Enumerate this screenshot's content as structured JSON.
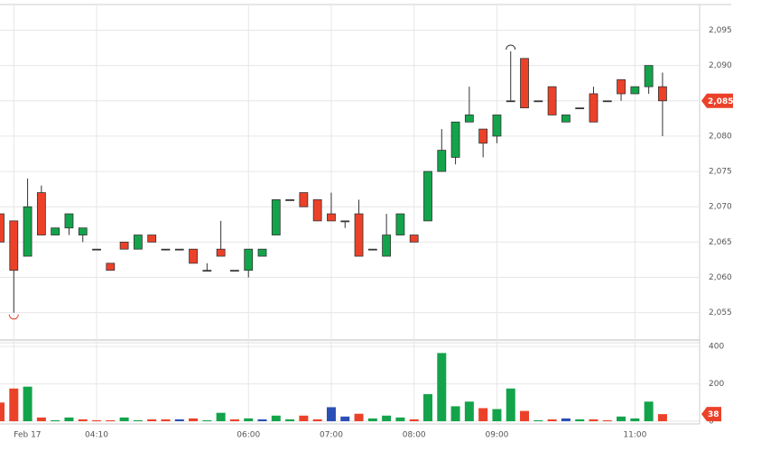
{
  "chart_data": {
    "type": "candlestick",
    "categories": [
      null,
      "Feb 17",
      null,
      null,
      null,
      null,
      null,
      "04:10",
      null,
      null,
      null,
      null,
      null,
      null,
      null,
      null,
      null,
      null,
      "06:00",
      null,
      null,
      null,
      null,
      null,
      "07:00",
      null,
      null,
      null,
      null,
      null,
      "08:00",
      null,
      null,
      null,
      null,
      null,
      "09:00",
      null,
      null,
      null,
      null,
      null,
      null,
      null,
      null,
      null,
      "11:00",
      null,
      null
    ],
    "candles": {
      "open": [
        2069,
        2068,
        2063,
        2072,
        2066,
        2067,
        2066,
        2064,
        2062,
        2065,
        2064,
        2066,
        2064,
        2064,
        2064,
        2061,
        2064,
        2061,
        2061,
        2063,
        2066,
        2071,
        2072,
        2071,
        2069,
        2068,
        2069,
        2064,
        2063,
        2066,
        2066,
        2068,
        2075,
        2077,
        2082,
        2081,
        2080,
        2085,
        2091,
        2085,
        2087,
        2082,
        2084,
        2086,
        2085,
        2088,
        2086,
        2087,
        2087
      ],
      "high": [
        2069,
        2068,
        2074,
        2073,
        2067,
        2069,
        2067,
        2064,
        2062,
        2065,
        2066,
        2066,
        2064,
        2064,
        2064,
        2062,
        2068,
        2061,
        2064,
        2064,
        2071,
        2071,
        2072,
        2071,
        2072,
        2068,
        2071,
        2064,
        2069,
        2069,
        2066,
        2075,
        2081,
        2082,
        2087,
        2081,
        2083,
        2092,
        2091,
        2085,
        2087,
        2083,
        2084,
        2087,
        2085,
        2088,
        2087,
        2090,
        2089
      ],
      "low": [
        2065,
        2055,
        2063,
        2066,
        2066,
        2066,
        2065,
        2064,
        2061,
        2064,
        2064,
        2065,
        2064,
        2064,
        2062,
        2061,
        2063,
        2061,
        2060,
        2063,
        2066,
        2071,
        2070,
        2068,
        2068,
        2067,
        2063,
        2064,
        2063,
        2066,
        2065,
        2068,
        2075,
        2076,
        2082,
        2077,
        2079,
        2085,
        2084,
        2085,
        2083,
        2082,
        2084,
        2082,
        2085,
        2085,
        2086,
        2086,
        2080
      ],
      "close": [
        2065,
        2061,
        2070,
        2066,
        2067,
        2069,
        2067,
        2064,
        2061,
        2064,
        2066,
        2065,
        2064,
        2064,
        2062,
        2061,
        2063,
        2061,
        2064,
        2064,
        2071,
        2071,
        2070,
        2068,
        2068,
        2068,
        2063,
        2064,
        2066,
        2069,
        2065,
        2075,
        2078,
        2082,
        2083,
        2079,
        2083,
        2085,
        2084,
        2085,
        2083,
        2083,
        2084,
        2082,
        2085,
        2086,
        2087,
        2090,
        2085
      ]
    },
    "up_color": "#13a44b",
    "down_color": "#ec4129",
    "flat_color": "#444444",
    "ylim": [
      2051,
      2098
    ],
    "yticks": [
      {
        "value": 2055,
        "label": "2,055"
      },
      {
        "value": 2060,
        "label": "2,060"
      },
      {
        "value": 2065,
        "label": "2,065"
      },
      {
        "value": 2070,
        "label": "2,070"
      },
      {
        "value": 2075,
        "label": "2,075"
      },
      {
        "value": 2080,
        "label": "2,080"
      },
      {
        "value": 2085,
        "label": "2,085"
      },
      {
        "value": 2090,
        "label": "2,090"
      },
      {
        "value": 2095,
        "label": "2,095"
      }
    ],
    "last_price_label": "2,085",
    "volume": {
      "values": [
        100,
        175,
        185,
        20,
        5,
        20,
        10,
        5,
        5,
        20,
        5,
        10,
        10,
        10,
        15,
        5,
        45,
        10,
        15,
        10,
        30,
        10,
        30,
        10,
        75,
        25,
        40,
        15,
        30,
        20,
        10,
        145,
        365,
        80,
        105,
        70,
        65,
        175,
        55,
        5,
        10,
        15,
        10,
        10,
        5,
        25,
        15,
        105,
        38
      ],
      "colors": [
        "#ec4129",
        "#ec4129",
        "#13a44b",
        "#ec4129",
        "#13a44b",
        "#13a44b",
        "#ec4129",
        "#ec4129",
        "#ec4129",
        "#13a44b",
        "#13a44b",
        "#ec4129",
        "#ec4129",
        "#2a4fb5",
        "#ec4129",
        "#13a44b",
        "#13a44b",
        "#ec4129",
        "#13a44b",
        "#2a4fb5",
        "#13a44b",
        "#13a44b",
        "#ec4129",
        "#ec4129",
        "#2a4fb5",
        "#2a4fb5",
        "#ec4129",
        "#13a44b",
        "#13a44b",
        "#13a44b",
        "#ec4129",
        "#13a44b",
        "#13a44b",
        "#13a44b",
        "#13a44b",
        "#ec4129",
        "#13a44b",
        "#13a44b",
        "#ec4129",
        "#13a44b",
        "#ec4129",
        "#2a4fb5",
        "#13a44b",
        "#ec4129",
        "#ec4129",
        "#13a44b",
        "#13a44b",
        "#13a44b",
        "#ec4129"
      ],
      "ylim": [
        0,
        420
      ],
      "yticks": [
        0,
        200,
        400
      ]
    },
    "grid": true
  }
}
